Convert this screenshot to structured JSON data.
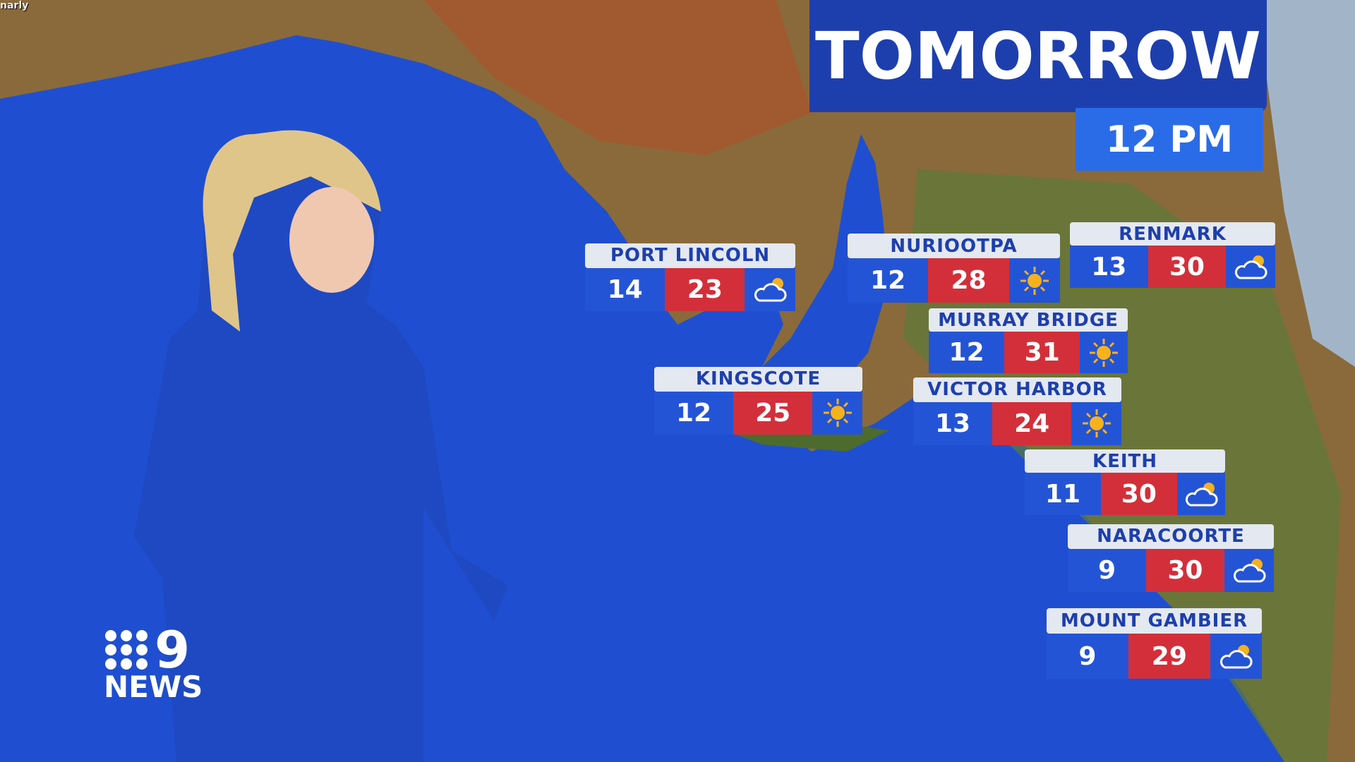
{
  "corner_text": "narly",
  "banner": {
    "title": "TOMORROW",
    "time": "12 PM"
  },
  "logo": {
    "text": "NEWS",
    "brand": "9"
  },
  "colors": {
    "min_bg": "#2454d6",
    "max_bg": "#d32f3a",
    "label_bg": "#e4e8f0",
    "sea": "#1f4fd0"
  },
  "forecasts": [
    {
      "place": "PORT LINCOLN",
      "min": "14",
      "max": "23",
      "icon": "partly-cloudy-icon"
    },
    {
      "place": "NURIOOTPA",
      "min": "12",
      "max": "28",
      "icon": "sunny-icon"
    },
    {
      "place": "RENMARK",
      "min": "13",
      "max": "30",
      "icon": "partly-cloudy-icon"
    },
    {
      "place": "MURRAY BRIDGE",
      "min": "12",
      "max": "31",
      "icon": "sunny-icon"
    },
    {
      "place": "KINGSCOTE",
      "min": "12",
      "max": "25",
      "icon": "sunny-icon"
    },
    {
      "place": "VICTOR HARBOR",
      "min": "13",
      "max": "24",
      "icon": "sunny-icon"
    },
    {
      "place": "KEITH",
      "min": "11",
      "max": "30",
      "icon": "partly-cloudy-icon"
    },
    {
      "place": "NARACOORTE",
      "min": "9",
      "max": "30",
      "icon": "partly-cloudy-icon"
    },
    {
      "place": "MOUNT GAMBIER",
      "min": "9",
      "max": "29",
      "icon": "partly-cloudy-icon"
    }
  ]
}
